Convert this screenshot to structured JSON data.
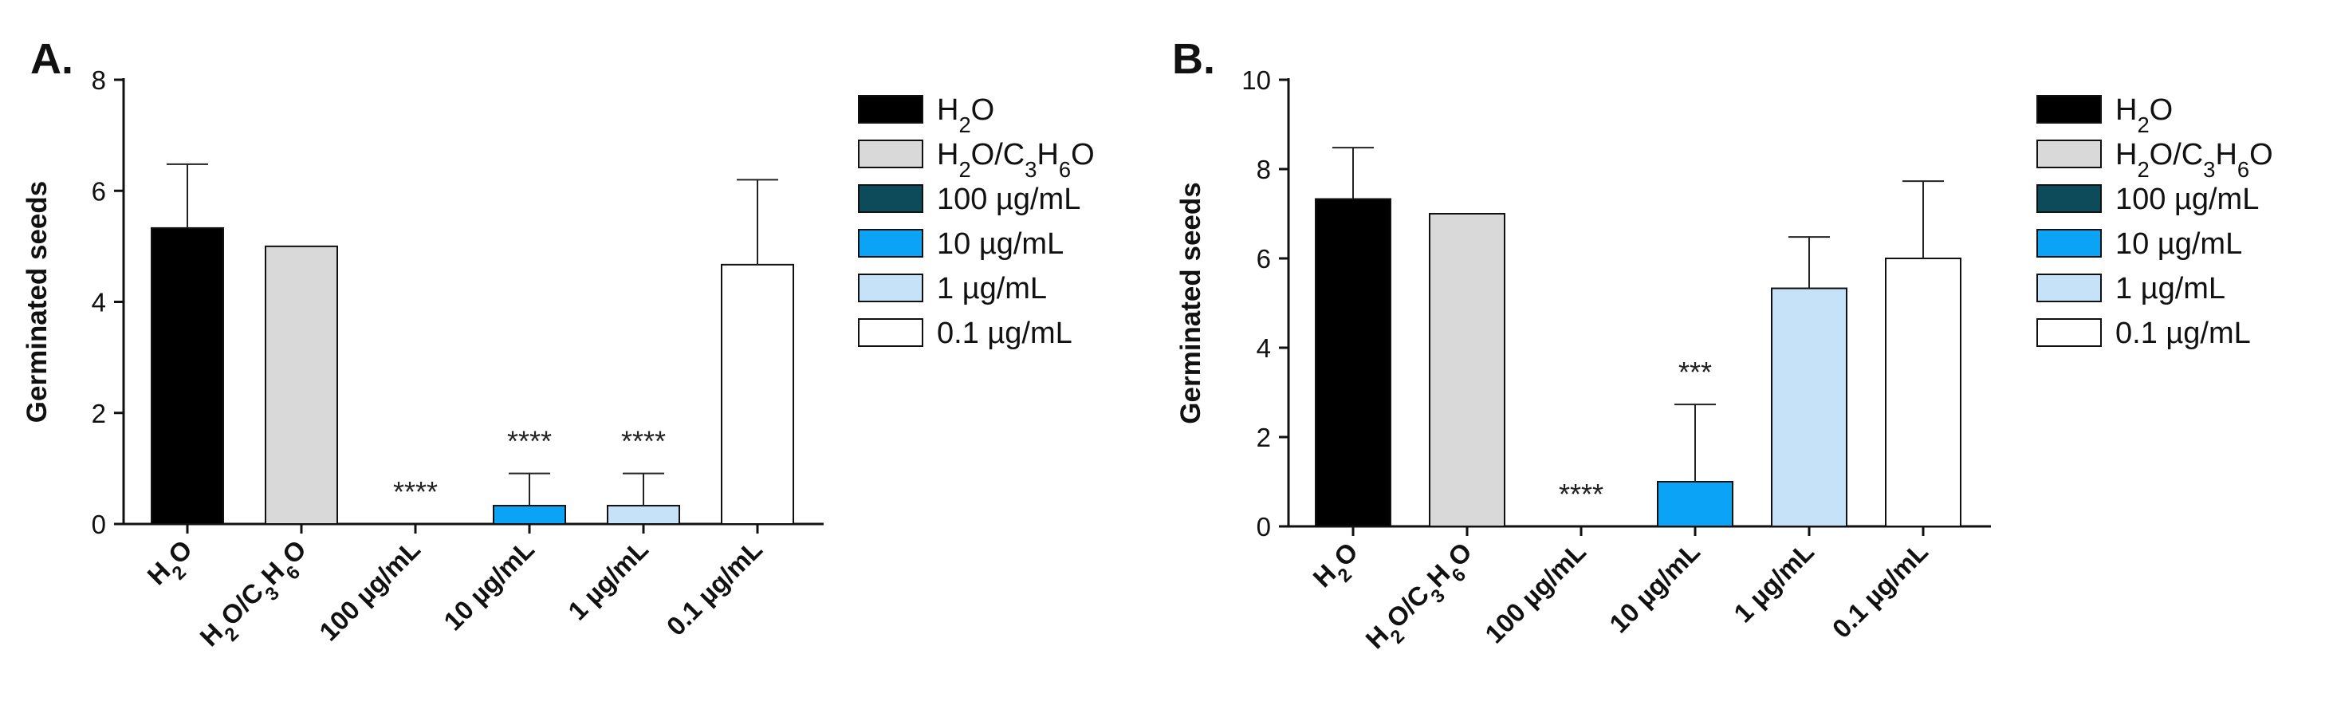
{
  "chart_data": [
    {
      "type": "bar",
      "panel": "A.",
      "ylabel": "Germinated seeds",
      "ylim": [
        0,
        8
      ],
      "yticks": [
        0,
        2,
        4,
        6,
        8
      ],
      "categories": [
        {
          "parts": [
            [
              "H",
              ""
            ],
            [
              "2",
              "sub"
            ],
            [
              "O",
              ""
            ]
          ]
        },
        {
          "parts": [
            [
              "H",
              ""
            ],
            [
              "2",
              "sub"
            ],
            [
              "O/C",
              ""
            ],
            [
              "3",
              "sub"
            ],
            [
              "H",
              ""
            ],
            [
              "6",
              "sub"
            ],
            [
              "O",
              ""
            ]
          ]
        },
        {
          "parts": [
            [
              "100 µg/mL",
              ""
            ]
          ]
        },
        {
          "parts": [
            [
              "10 µg/mL",
              ""
            ]
          ]
        },
        {
          "parts": [
            [
              "1 µg/mL",
              ""
            ]
          ]
        },
        {
          "parts": [
            [
              "0.1 µg/mL",
              ""
            ]
          ]
        }
      ],
      "values": [
        5.33,
        5.0,
        0,
        0.33,
        0.33,
        4.67
      ],
      "errors": [
        1.15,
        0,
        0,
        0.58,
        0.58,
        1.53
      ],
      "significance": [
        "",
        "",
        "****",
        "****",
        "****",
        ""
      ],
      "colors": [
        "#000000",
        "#d9d9d9",
        "#0d4a5a",
        "#0aa3f5",
        "#c6e2f9",
        "#ffffff"
      ],
      "legend": [
        {
          "parts": [
            [
              "H",
              ""
            ],
            [
              "2",
              "sub"
            ],
            [
              "O",
              ""
            ]
          ],
          "color": "#000000"
        },
        {
          "parts": [
            [
              "H",
              ""
            ],
            [
              "2",
              "sub"
            ],
            [
              "O/C",
              ""
            ],
            [
              "3",
              "sub"
            ],
            [
              "H",
              ""
            ],
            [
              "6",
              "sub"
            ],
            [
              "O",
              ""
            ]
          ],
          "color": "#d9d9d9"
        },
        {
          "parts": [
            [
              "100 µg/mL",
              ""
            ]
          ],
          "color": "#0d4a5a"
        },
        {
          "parts": [
            [
              "10 µg/mL",
              ""
            ]
          ],
          "color": "#0aa3f5"
        },
        {
          "parts": [
            [
              "1 µg/mL",
              ""
            ]
          ],
          "color": "#c6e2f9"
        },
        {
          "parts": [
            [
              "0.1 µg/mL",
              ""
            ]
          ],
          "color": "#ffffff"
        }
      ]
    },
    {
      "type": "bar",
      "panel": "B.",
      "ylabel": "Germinated seeds",
      "ylim": [
        0,
        10
      ],
      "yticks": [
        0,
        2,
        4,
        6,
        8,
        10
      ],
      "categories": [
        {
          "parts": [
            [
              "H",
              ""
            ],
            [
              "2",
              "sub"
            ],
            [
              "O",
              ""
            ]
          ]
        },
        {
          "parts": [
            [
              "H",
              ""
            ],
            [
              "2",
              "sub"
            ],
            [
              "O/C",
              ""
            ],
            [
              "3",
              "sub"
            ],
            [
              "H",
              ""
            ],
            [
              "6",
              "sub"
            ],
            [
              "O",
              ""
            ]
          ]
        },
        {
          "parts": [
            [
              "100 µg/mL",
              ""
            ]
          ]
        },
        {
          "parts": [
            [
              "10 µg/mL",
              ""
            ]
          ]
        },
        {
          "parts": [
            [
              "1 µg/mL",
              ""
            ]
          ]
        },
        {
          "parts": [
            [
              "0.1 µg/mL",
              ""
            ]
          ]
        }
      ],
      "values": [
        7.33,
        7.0,
        0,
        1.0,
        5.33,
        6.0
      ],
      "errors": [
        1.15,
        0,
        0,
        1.73,
        1.15,
        1.73
      ],
      "significance": [
        "",
        "",
        "****",
        "***",
        "",
        ""
      ],
      "colors": [
        "#000000",
        "#d9d9d9",
        "#0d4a5a",
        "#0aa3f5",
        "#c6e2f9",
        "#ffffff"
      ],
      "legend": [
        {
          "parts": [
            [
              "H",
              ""
            ],
            [
              "2",
              "sub"
            ],
            [
              "O",
              ""
            ]
          ],
          "color": "#000000"
        },
        {
          "parts": [
            [
              "H",
              ""
            ],
            [
              "2",
              "sub"
            ],
            [
              "O/C",
              ""
            ],
            [
              "3",
              "sub"
            ],
            [
              "H",
              ""
            ],
            [
              "6",
              "sub"
            ],
            [
              "O",
              ""
            ]
          ],
          "color": "#d9d9d9"
        },
        {
          "parts": [
            [
              "100 µg/mL",
              ""
            ]
          ],
          "color": "#0d4a5a"
        },
        {
          "parts": [
            [
              "10 µg/mL",
              ""
            ]
          ],
          "color": "#0aa3f5"
        },
        {
          "parts": [
            [
              "1 µg/mL",
              ""
            ]
          ],
          "color": "#c6e2f9"
        },
        {
          "parts": [
            [
              "0.1 µg/mL",
              ""
            ]
          ],
          "color": "#ffffff"
        }
      ]
    }
  ]
}
